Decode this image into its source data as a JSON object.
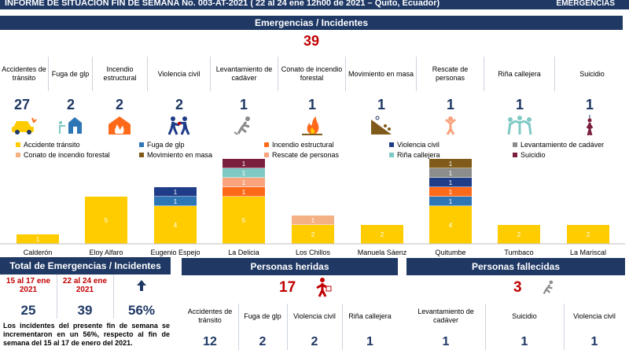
{
  "header": {
    "title": "INFORME DE SITUACIÓN FIN DE SEMANA No. 003-AT-2021 ( 22 al 24 ene 12h00 de 2021 – Quito, Ecuador)",
    "logo_text": "EMERGENCIAS"
  },
  "emergencias": {
    "section_title": "Emergencias / Incidentes",
    "total": "39",
    "categories": [
      {
        "label": "Accidentes de tránsito",
        "count": "27",
        "icon": "car-crash-icon"
      },
      {
        "label": "Fuga de glp",
        "count": "2",
        "icon": "gas-leak-icon"
      },
      {
        "label": "Incendio estructural",
        "count": "2",
        "icon": "house-fire-icon"
      },
      {
        "label": "Violencia civil",
        "count": "2",
        "icon": "fighting-icon"
      },
      {
        "label": "Levantamiento de cadáver",
        "count": "1",
        "icon": "fallen-person-icon"
      },
      {
        "label": "Conato de incendio forestal",
        "count": "1",
        "icon": "forest-fire-icon"
      },
      {
        "label": "Movimiento en masa",
        "count": "1",
        "icon": "landslide-icon"
      },
      {
        "label": "Rescate de personas",
        "count": "1",
        "icon": "rescue-person-icon"
      },
      {
        "label": "Riña callejera",
        "count": "1",
        "icon": "street-fight-icon"
      },
      {
        "label": "Suicidio",
        "count": "1",
        "icon": "suicide-icon"
      }
    ]
  },
  "colors": {
    "navy": "#1f3864",
    "accidente": "#ffcc00",
    "fuga": "#2e75b6",
    "incendio": "#ff6a1a",
    "violencia": "#1f3c88",
    "levantamiento": "#8c8c8c",
    "conato": "#f4b183",
    "movimiento": "#7f5a1a",
    "rescate": "#f8a37c",
    "rina": "#7fc9c4",
    "suicidio": "#7b1f3f",
    "red": "#c00000"
  },
  "chart_data": {
    "type": "bar",
    "stacked": true,
    "categories": [
      "Calderón",
      "Eloy Alfaro",
      "Eugenio Espejo",
      "La Delicia",
      "Los Chillos",
      "Manuela Sáenz",
      "Quitumbe",
      "Tumbaco",
      "La Mariscal"
    ],
    "series": [
      {
        "name": "Accidente tránsito",
        "values": [
          1,
          5,
          4,
          5,
          2,
          2,
          4,
          2,
          2
        ]
      },
      {
        "name": "Fuga de glp",
        "values": [
          0,
          0,
          1,
          0,
          0,
          0,
          1,
          0,
          0
        ]
      },
      {
        "name": "Incendio estructural",
        "values": [
          0,
          0,
          0,
          1,
          0,
          0,
          1,
          0,
          0
        ]
      },
      {
        "name": "Violencia civil",
        "values": [
          0,
          0,
          1,
          0,
          0,
          0,
          1,
          0,
          0
        ]
      },
      {
        "name": "Levantamiento de cadáver",
        "values": [
          0,
          0,
          0,
          0,
          0,
          0,
          1,
          0,
          0
        ]
      },
      {
        "name": "Conato de incendio forestal",
        "values": [
          0,
          0,
          0,
          0,
          1,
          0,
          0,
          0,
          0
        ]
      },
      {
        "name": "Movimiento en masa",
        "values": [
          0,
          0,
          0,
          0,
          0,
          0,
          1,
          0,
          0
        ]
      },
      {
        "name": "Rescate de personas",
        "values": [
          0,
          0,
          0,
          1,
          0,
          0,
          0,
          0,
          0
        ]
      },
      {
        "name": "Riña callejera",
        "values": [
          0,
          0,
          0,
          1,
          0,
          0,
          0,
          0,
          0
        ]
      },
      {
        "name": "Suicidio",
        "values": [
          0,
          0,
          0,
          1,
          0,
          0,
          0,
          0,
          0
        ]
      }
    ],
    "legend": "top",
    "grid": false
  },
  "comparacion": {
    "title": "Total de Emergencias / Incidentes",
    "period_prev": "15 al 17 ene 2021",
    "period_curr": "22 al 24 ene 2021",
    "value_prev": "25",
    "value_curr": "39",
    "change": "56%",
    "trend_icon": "arrow-up-icon",
    "note": "Los incidentes del presente fin de semana se incrementaron en un 56%, respecto al fin de semana del 15 al 17 de enero del 2021."
  },
  "heridas": {
    "title": "Personas heridas",
    "total": "17",
    "icon": "injured-person-icon",
    "items": [
      {
        "label": "Accidentes de tránsito",
        "count": "12"
      },
      {
        "label": "Fuga de glp",
        "count": "2"
      },
      {
        "label": "Violencia civil",
        "count": "2"
      },
      {
        "label": "Riña callejera",
        "count": "1"
      }
    ]
  },
  "fallecidas": {
    "title": "Personas fallecidas",
    "total": "3",
    "icon": "fallen-person-icon",
    "items": [
      {
        "label": "Levantamiento de cadáver",
        "count": "1"
      },
      {
        "label": "Suicidio",
        "count": "1"
      },
      {
        "label": "Violencia civil",
        "count": "1"
      }
    ]
  }
}
